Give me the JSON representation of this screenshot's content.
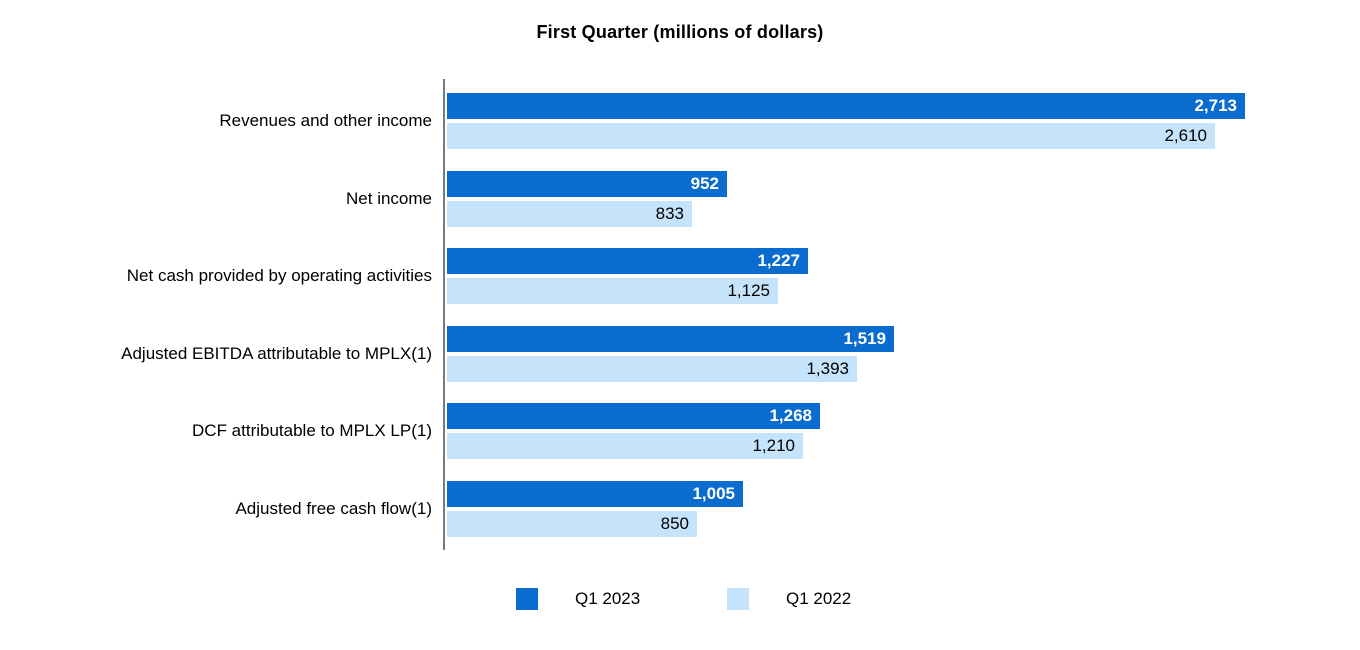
{
  "title": "First Quarter (millions of dollars)",
  "chart_data": {
    "type": "bar",
    "orientation": "horizontal",
    "title": "First Quarter (millions of dollars)",
    "categories": [
      "Revenues and other income",
      "Net income",
      "Net cash provided by operating activities",
      "Adjusted EBITDA attributable to MPLX(1)",
      "DCF attributable to MPLX LP(1)",
      "Adjusted free cash flow(1)"
    ],
    "series": [
      {
        "name": "Q1 2023",
        "color": "#0a6cce",
        "values": [
          2713,
          952,
          1227,
          1519,
          1268,
          1005
        ],
        "labels": [
          "2,713",
          "952",
          "1,227",
          "1,519",
          "1,268",
          "1,005"
        ]
      },
      {
        "name": "Q1 2022",
        "color": "#c5e3fa",
        "values": [
          2610,
          833,
          1125,
          1393,
          1210,
          850
        ],
        "labels": [
          "2,610",
          "833",
          "1,125",
          "1,393",
          "1,210",
          "850"
        ]
      }
    ],
    "value_labels_inside_bars": true,
    "xlim": [
      0,
      2755
    ],
    "grid": false,
    "axis_line_color": "#7a7a7a",
    "legend_position": "bottom"
  }
}
